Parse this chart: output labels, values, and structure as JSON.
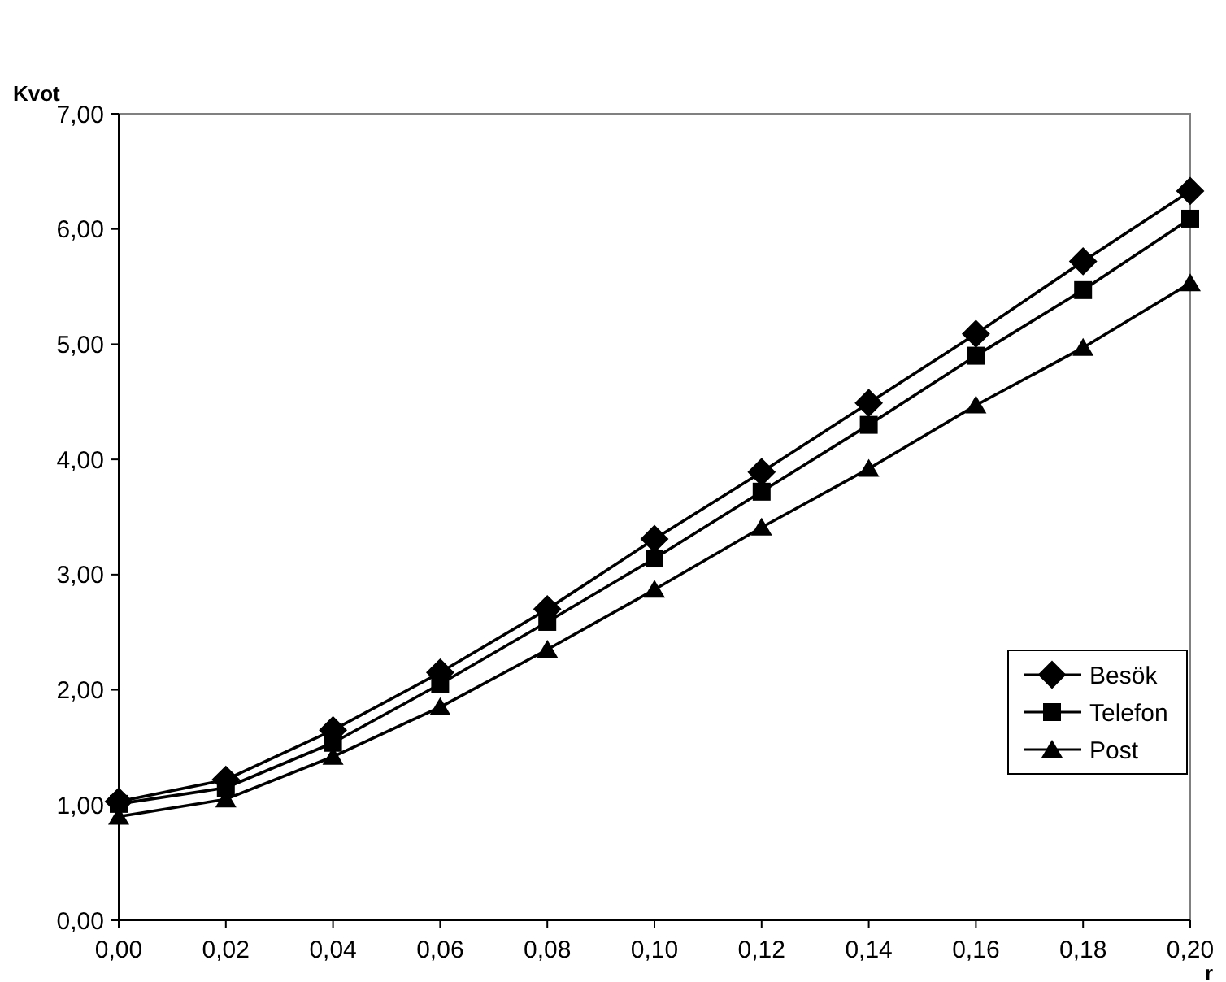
{
  "chart_data": {
    "type": "line",
    "xlabel": "r",
    "ylabel": "Kvot",
    "x": [
      0,
      0.02,
      0.04,
      0.06,
      0.08,
      0.1,
      0.12,
      0.14,
      0.16,
      0.18,
      0.2
    ],
    "series": [
      {
        "name": "Besök",
        "color": "#000000",
        "marker": "diamond",
        "values": [
          1.03,
          1.22,
          1.65,
          2.15,
          2.7,
          3.31,
          3.89,
          4.49,
          5.09,
          5.72,
          6.33
        ]
      },
      {
        "name": "Telefon",
        "color": "#000000",
        "marker": "square",
        "values": [
          1.01,
          1.15,
          1.54,
          2.05,
          2.59,
          3.14,
          3.72,
          4.3,
          4.9,
          5.47,
          6.09
        ]
      },
      {
        "name": "Post",
        "color": "#000000",
        "marker": "triangle",
        "values": [
          0.9,
          1.05,
          1.42,
          1.85,
          2.35,
          2.87,
          3.41,
          3.92,
          4.47,
          4.97,
          5.53
        ]
      }
    ],
    "xlim": [
      0,
      0.2
    ],
    "ylim": [
      0,
      7
    ],
    "xticks": [
      {
        "value": 0,
        "label": "0,00"
      },
      {
        "value": 0.02,
        "label": "0,02"
      },
      {
        "value": 0.04,
        "label": "0,04"
      },
      {
        "value": 0.06,
        "label": "0,06"
      },
      {
        "value": 0.08,
        "label": "0,08"
      },
      {
        "value": 0.1,
        "label": "0,10"
      },
      {
        "value": 0.12,
        "label": "0,12"
      },
      {
        "value": 0.14,
        "label": "0,14"
      },
      {
        "value": 0.16,
        "label": "0,16"
      },
      {
        "value": 0.18,
        "label": "0,18"
      },
      {
        "value": 0.2,
        "label": "0,20"
      }
    ],
    "yticks": [
      {
        "value": 0,
        "label": "0,00"
      },
      {
        "value": 1,
        "label": "1,00"
      },
      {
        "value": 2,
        "label": "2,00"
      },
      {
        "value": 3,
        "label": "3,00"
      },
      {
        "value": 4,
        "label": "4,00"
      },
      {
        "value": 5,
        "label": "5,00"
      },
      {
        "value": 6,
        "label": "6,00"
      },
      {
        "value": 7,
        "label": "7,00"
      }
    ],
    "grid": false,
    "legend": "right",
    "line_style": "solid"
  }
}
